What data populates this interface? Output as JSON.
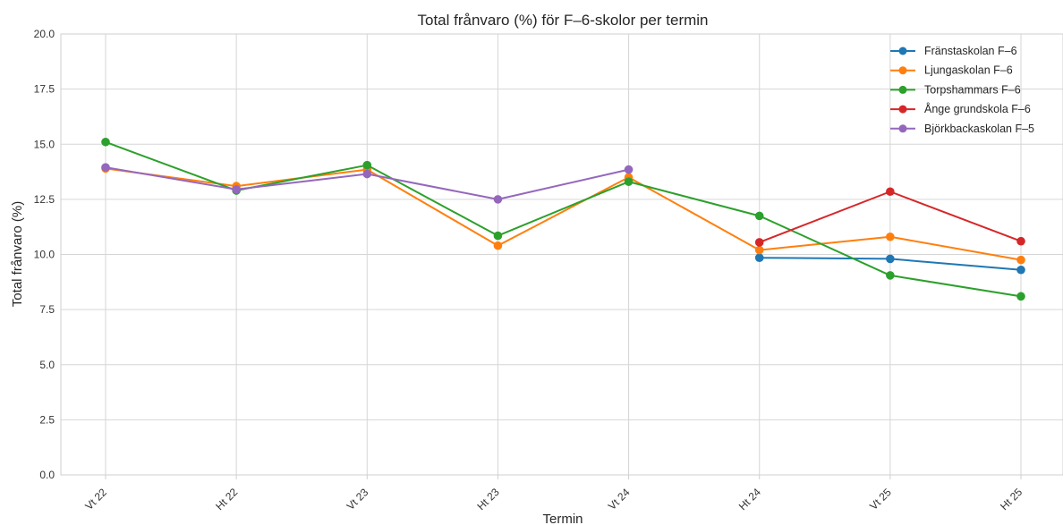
{
  "chart_data": {
    "type": "line",
    "title": "Total frånvaro (%) för F–6-skolor per termin",
    "xlabel": "Termin",
    "ylabel": "Total frånvaro (%)",
    "categories": [
      "Vt 22",
      "Ht 22",
      "Vt 23",
      "Ht 23",
      "Vt 24",
      "Ht 24",
      "Vt 25",
      "Ht 25"
    ],
    "ylim": [
      0,
      20
    ],
    "yticks": [
      "0.0",
      "2.5",
      "5.0",
      "7.5",
      "10.0",
      "12.5",
      "15.0",
      "17.5",
      "20.0"
    ],
    "grid": true,
    "legend_position": "top-right",
    "series": [
      {
        "name": "Fränstaskolan F–6",
        "color": "#1f77b4",
        "values": [
          null,
          null,
          null,
          null,
          null,
          9.85,
          9.8,
          9.3
        ]
      },
      {
        "name": "Ljungaskolan F–6",
        "color": "#ff7f0e",
        "values": [
          13.9,
          13.1,
          13.85,
          10.4,
          13.5,
          10.2,
          10.8,
          9.75
        ]
      },
      {
        "name": "Torpshammars F–6",
        "color": "#2ca02c",
        "values": [
          15.1,
          12.9,
          14.05,
          10.85,
          13.3,
          11.75,
          9.05,
          8.1
        ]
      },
      {
        "name": "Ånge grundskola F–6",
        "color": "#d62728",
        "values": [
          null,
          null,
          null,
          null,
          null,
          10.55,
          12.85,
          10.6
        ]
      },
      {
        "name": "Björkbackaskolan F–5",
        "color": "#9467bd",
        "values": [
          13.95,
          12.95,
          13.65,
          12.5,
          13.85,
          null,
          null,
          null
        ]
      }
    ]
  }
}
